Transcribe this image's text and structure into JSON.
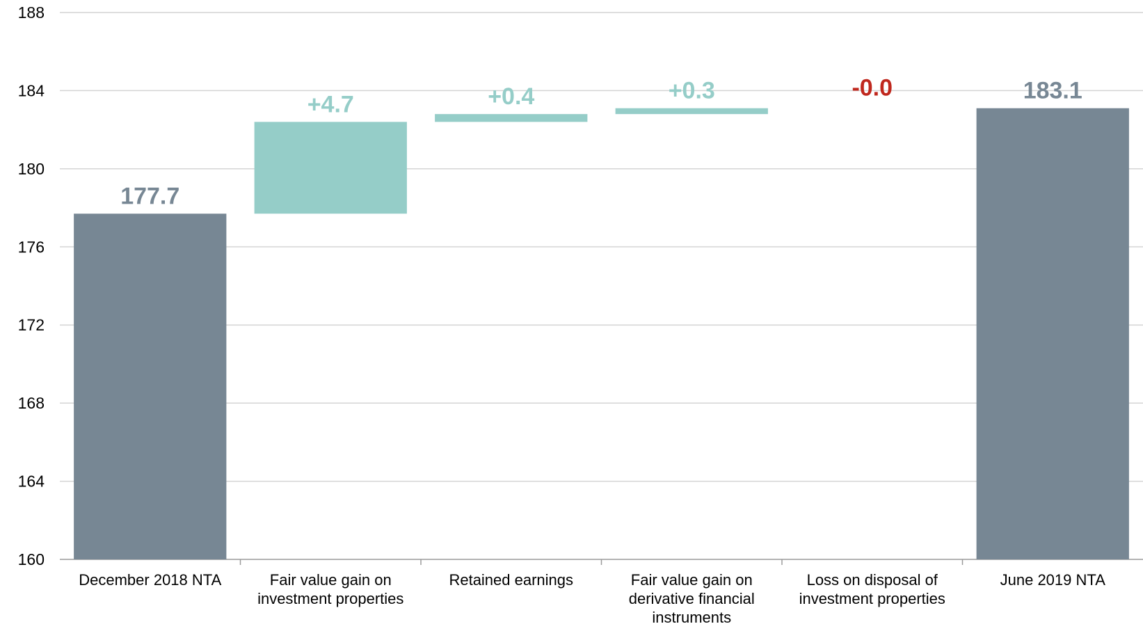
{
  "chart_data": {
    "type": "bar",
    "subtype": "waterfall",
    "title": "",
    "xlabel": "",
    "ylabel": "",
    "ylim": [
      160,
      188
    ],
    "yticks": [
      160,
      164,
      168,
      172,
      176,
      180,
      184,
      188
    ],
    "grid": true,
    "legend": "none",
    "categories": [
      [
        "December  2018 NTA"
      ],
      [
        "Fair value gain on",
        "investment properties"
      ],
      [
        "Retained earnings"
      ],
      [
        "Fair value gain on",
        "derivative financial",
        "instruments"
      ],
      [
        "Loss on disposal of",
        "investment properties"
      ],
      [
        "June 2019 NTA"
      ]
    ],
    "bars": [
      {
        "kind": "total",
        "start": 160,
        "end": 177.7,
        "label": "177.7"
      },
      {
        "kind": "delta",
        "start": 177.7,
        "end": 182.4,
        "label": "+4.7"
      },
      {
        "kind": "delta",
        "start": 182.4,
        "end": 182.8,
        "label": "+0.4"
      },
      {
        "kind": "delta",
        "start": 182.8,
        "end": 183.1,
        "label": "+0.3"
      },
      {
        "kind": "delta",
        "start": 183.1,
        "end": 183.1,
        "label": "-0.0"
      },
      {
        "kind": "total",
        "start": 160,
        "end": 183.1,
        "label": "183.1"
      }
    ],
    "colors": {
      "total": "#778794",
      "increase": "#95cdc8",
      "decrease": "#c0281e",
      "grid": "#d4d4d4",
      "total_label": "#778794",
      "increase_label": "#95cdc8",
      "decrease_label": "#c0281e"
    }
  }
}
